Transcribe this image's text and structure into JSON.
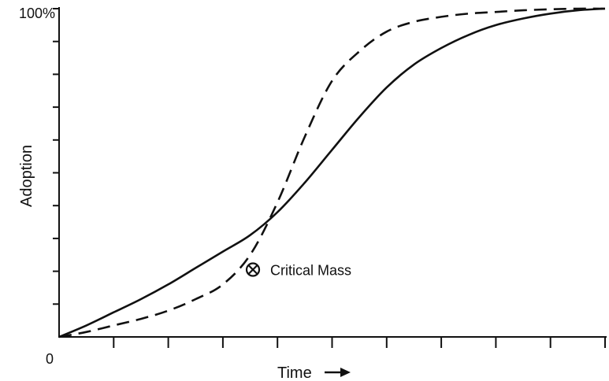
{
  "chart_data": {
    "type": "line",
    "title": "",
    "xlabel": "Time",
    "ylabel": "Adoption",
    "xlim": [
      0,
      10
    ],
    "ylim": [
      0,
      100
    ],
    "y_top_tick_label": "100%",
    "origin_label": "0",
    "x_tick_count": 10,
    "y_tick_count": 10,
    "grid": false,
    "series": [
      {
        "style": "solid",
        "x": [
          0,
          0.5,
          1,
          1.5,
          2,
          2.5,
          3,
          3.5,
          4,
          4.5,
          5,
          5.5,
          6,
          6.5,
          7,
          7.5,
          8,
          8.5,
          9,
          9.5,
          10
        ],
        "y": [
          0,
          3.5,
          7.5,
          11.5,
          16,
          21,
          26,
          31,
          38,
          47,
          57,
          67,
          76,
          83,
          88,
          92,
          95,
          97,
          98.5,
          99.5,
          100
        ]
      },
      {
        "style": "dashed",
        "x": [
          0,
          0.5,
          1,
          1.5,
          2,
          2.5,
          3,
          3.5,
          4,
          4.5,
          5,
          5.5,
          6,
          6.5,
          7,
          7.5,
          8,
          8.5,
          9,
          9.5,
          10
        ],
        "y": [
          0,
          1.5,
          3.5,
          5.5,
          8,
          11.5,
          16,
          25,
          41,
          61,
          78,
          87,
          93,
          96,
          97.5,
          98.5,
          99,
          99.5,
          99.8,
          100,
          100
        ]
      }
    ],
    "annotations": [
      {
        "text": "Critical Mass",
        "marker": "circle-x",
        "x": 3.55,
        "y": 20.5
      }
    ],
    "arrow_glyph": "right-arrow"
  }
}
